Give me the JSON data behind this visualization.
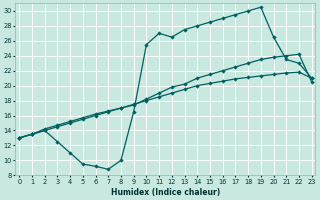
{
  "xlabel": "Humidex (Indice chaleur)",
  "bg_color": "#c8e8e0",
  "grid_color": "#ffffff",
  "line_color": "#006060",
  "xlim": [
    -0.3,
    23.3
  ],
  "ylim": [
    8,
    31
  ],
  "xticks": [
    0,
    1,
    2,
    3,
    4,
    5,
    6,
    7,
    8,
    9,
    10,
    11,
    12,
    13,
    14,
    15,
    16,
    17,
    18,
    19,
    20,
    21,
    22,
    23
  ],
  "yticks": [
    8,
    10,
    12,
    14,
    16,
    18,
    20,
    22,
    24,
    26,
    28,
    30
  ],
  "line_curved": {
    "x": [
      0,
      1,
      2,
      3,
      4,
      5,
      6,
      7,
      8,
      9,
      10,
      11,
      12,
      13,
      14,
      15,
      16,
      17,
      18,
      19,
      20,
      21,
      22,
      23
    ],
    "y": [
      13,
      13.5,
      14,
      12.5,
      11.0,
      9.5,
      9.2,
      8.8,
      10.0,
      16.5,
      25.5,
      27.0,
      26.5,
      27.5,
      28.0,
      28.5,
      29.0,
      29.5,
      30.0,
      30.5,
      26.5,
      23.5,
      23.0,
      21.0
    ]
  },
  "line_straight1": {
    "x": [
      0,
      1,
      2,
      3,
      4,
      5,
      6,
      7,
      8,
      9,
      10,
      11,
      12,
      13,
      14,
      15,
      16,
      17,
      18,
      19,
      20,
      21,
      22,
      23
    ],
    "y": [
      13,
      13.5,
      14.0,
      14.5,
      15.0,
      15.5,
      16.0,
      16.5,
      17.0,
      17.5,
      18.0,
      18.5,
      19.0,
      19.5,
      20.0,
      20.3,
      20.6,
      20.9,
      21.1,
      21.3,
      21.5,
      21.7,
      21.8,
      21.0
    ]
  },
  "line_straight2": {
    "x": [
      0,
      1,
      2,
      3,
      4,
      5,
      6,
      7,
      8,
      9,
      10,
      11,
      12,
      13,
      14,
      15,
      16,
      17,
      18,
      19,
      20,
      21,
      22,
      23
    ],
    "y": [
      13,
      13.5,
      14.2,
      14.7,
      15.2,
      15.7,
      16.2,
      16.6,
      17.0,
      17.4,
      18.2,
      19.0,
      19.8,
      20.2,
      21.0,
      21.5,
      22.0,
      22.5,
      23.0,
      23.5,
      23.8,
      24.0,
      24.2,
      20.5
    ]
  }
}
